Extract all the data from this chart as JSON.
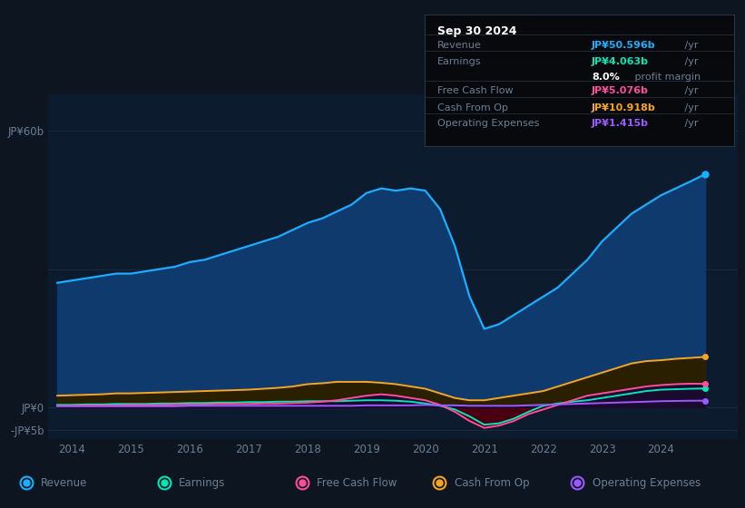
{
  "bg_color": "#0c1520",
  "chart_bg_color": "#0d1b2e",
  "grid_color": "#1a2d45",
  "text_color": "#6b7f95",
  "ylim": [
    -7,
    68
  ],
  "xlim_min": 2013.6,
  "xlim_max": 2025.3,
  "years": [
    2013.75,
    2014.0,
    2014.25,
    2014.5,
    2014.75,
    2015.0,
    2015.25,
    2015.5,
    2015.75,
    2016.0,
    2016.25,
    2016.5,
    2016.75,
    2017.0,
    2017.25,
    2017.5,
    2017.75,
    2018.0,
    2018.25,
    2018.5,
    2018.75,
    2019.0,
    2019.25,
    2019.5,
    2019.75,
    2020.0,
    2020.25,
    2020.5,
    2020.75,
    2021.0,
    2021.25,
    2021.5,
    2021.75,
    2022.0,
    2022.25,
    2022.5,
    2022.75,
    2023.0,
    2023.25,
    2023.5,
    2023.75,
    2024.0,
    2024.25,
    2024.5,
    2024.75
  ],
  "revenue": [
    27.0,
    27.5,
    28.0,
    28.5,
    29.0,
    29.0,
    29.5,
    30.0,
    30.5,
    31.5,
    32.0,
    33.0,
    34.0,
    35.0,
    36.0,
    37.0,
    38.5,
    40.0,
    41.0,
    42.5,
    44.0,
    46.5,
    47.5,
    47.0,
    47.5,
    47.0,
    43.0,
    35.0,
    24.0,
    17.0,
    18.0,
    20.0,
    22.0,
    24.0,
    26.0,
    29.0,
    32.0,
    36.0,
    39.0,
    42.0,
    44.0,
    46.0,
    47.5,
    49.0,
    50.596
  ],
  "earnings": [
    0.5,
    0.5,
    0.6,
    0.6,
    0.7,
    0.7,
    0.7,
    0.8,
    0.8,
    0.9,
    0.9,
    1.0,
    1.0,
    1.1,
    1.1,
    1.2,
    1.2,
    1.3,
    1.3,
    1.3,
    1.4,
    1.5,
    1.5,
    1.4,
    1.2,
    0.8,
    0.3,
    -0.5,
    -2.0,
    -3.8,
    -3.5,
    -2.5,
    -1.0,
    0.3,
    0.8,
    1.2,
    1.5,
    2.0,
    2.5,
    3.0,
    3.5,
    3.8,
    3.9,
    4.0,
    4.063
  ],
  "free_cash_flow": [
    0.3,
    0.3,
    0.4,
    0.4,
    0.4,
    0.5,
    0.5,
    0.5,
    0.6,
    0.6,
    0.6,
    0.7,
    0.7,
    0.7,
    0.8,
    0.8,
    0.9,
    1.0,
    1.2,
    1.5,
    2.0,
    2.5,
    2.8,
    2.5,
    2.0,
    1.5,
    0.5,
    -1.0,
    -3.0,
    -4.5,
    -4.0,
    -3.0,
    -1.5,
    -0.5,
    0.5,
    1.5,
    2.5,
    3.0,
    3.5,
    4.0,
    4.5,
    4.8,
    5.0,
    5.1,
    5.076
  ],
  "cash_from_op": [
    2.5,
    2.6,
    2.7,
    2.8,
    3.0,
    3.0,
    3.1,
    3.2,
    3.3,
    3.4,
    3.5,
    3.6,
    3.7,
    3.8,
    4.0,
    4.2,
    4.5,
    5.0,
    5.2,
    5.5,
    5.5,
    5.5,
    5.3,
    5.0,
    4.5,
    4.0,
    3.0,
    2.0,
    1.5,
    1.5,
    2.0,
    2.5,
    3.0,
    3.5,
    4.5,
    5.5,
    6.5,
    7.5,
    8.5,
    9.5,
    10.0,
    10.2,
    10.5,
    10.7,
    10.918
  ],
  "operating_expenses": [
    0.2,
    0.2,
    0.2,
    0.2,
    0.2,
    0.2,
    0.2,
    0.2,
    0.2,
    0.3,
    0.3,
    0.3,
    0.3,
    0.3,
    0.3,
    0.3,
    0.3,
    0.3,
    0.3,
    0.3,
    0.3,
    0.4,
    0.4,
    0.4,
    0.4,
    0.5,
    0.4,
    0.4,
    0.3,
    0.3,
    0.3,
    0.3,
    0.4,
    0.5,
    0.6,
    0.7,
    0.8,
    0.9,
    1.0,
    1.1,
    1.2,
    1.3,
    1.35,
    1.4,
    1.415
  ],
  "revenue_color": "#1aaeff",
  "earnings_color": "#00e8b5",
  "free_cash_flow_color": "#ff4d9e",
  "cash_from_op_color": "#f5a623",
  "operating_expenses_color": "#9b59ff",
  "revenue_fill": "#0e3a6e",
  "earnings_fill_pos": "#003322",
  "earnings_fill_neg": "#4a0011",
  "fcf_fill_pos": "#1a0a2e",
  "fcf_fill_neg": "#4a0011",
  "cash_op_fill": "#2a2000",
  "op_exp_fill": "#1a0a30",
  "tooltip_date": "Sep 30 2024",
  "tooltip_revenue_label": "Revenue",
  "tooltip_revenue_val": "JP¥50.596b",
  "tooltip_earnings_label": "Earnings",
  "tooltip_earnings_val": "JP¥4.063b",
  "tooltip_margin_pct": "8.0%",
  "tooltip_margin_text": " profit margin",
  "tooltip_fcf_label": "Free Cash Flow",
  "tooltip_fcf_val": "JP¥5.076b",
  "tooltip_cashop_label": "Cash From Op",
  "tooltip_cashop_val": "JP¥10.918b",
  "tooltip_opex_label": "Operating Expenses",
  "tooltip_opex_val": "JP¥1.415b",
  "per_yr": " /yr",
  "legend_items": [
    "Revenue",
    "Earnings",
    "Free Cash Flow",
    "Cash From Op",
    "Operating Expenses"
  ]
}
